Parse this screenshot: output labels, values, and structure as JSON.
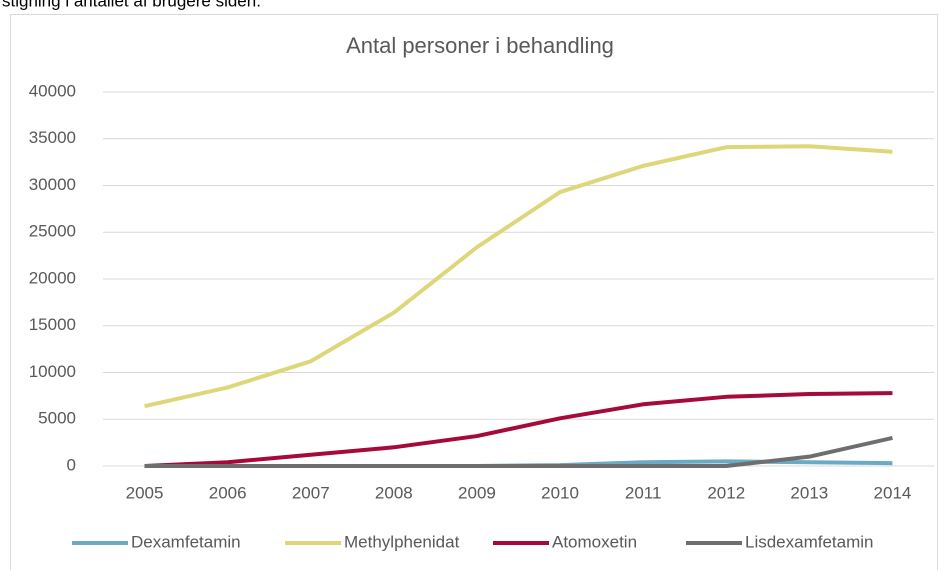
{
  "page_text": "stigning i antallet af brugere siden.",
  "chart_data": {
    "type": "line",
    "title": "Antal personer i behandling",
    "categories": [
      "2005",
      "2006",
      "2007",
      "2008",
      "2009",
      "2010",
      "2011",
      "2012",
      "2013",
      "2014"
    ],
    "series": [
      {
        "name": "Dexamfetamin",
        "color": "#6aaac4",
        "values": [
          0,
          0,
          0,
          0,
          0,
          100,
          400,
          500,
          400,
          300
        ]
      },
      {
        "name": "Methylphenidat",
        "color": "#ddd77a",
        "values": [
          6400,
          8400,
          11200,
          16400,
          23400,
          29300,
          32100,
          34100,
          34200,
          33600
        ]
      },
      {
        "name": "Atomoxetin",
        "color": "#a50a3a",
        "values": [
          0,
          400,
          1200,
          2000,
          3200,
          5100,
          6600,
          7400,
          7700,
          7800
        ]
      },
      {
        "name": "Lisdexamfetamin",
        "color": "#6e6e6e",
        "values": [
          0,
          0,
          0,
          0,
          0,
          0,
          0,
          0,
          1000,
          3000
        ]
      }
    ],
    "ylim": [
      0,
      40000
    ],
    "yticks": [
      0,
      5000,
      10000,
      15000,
      20000,
      25000,
      30000,
      35000,
      40000
    ],
    "grid": true,
    "legend": "bottom"
  }
}
